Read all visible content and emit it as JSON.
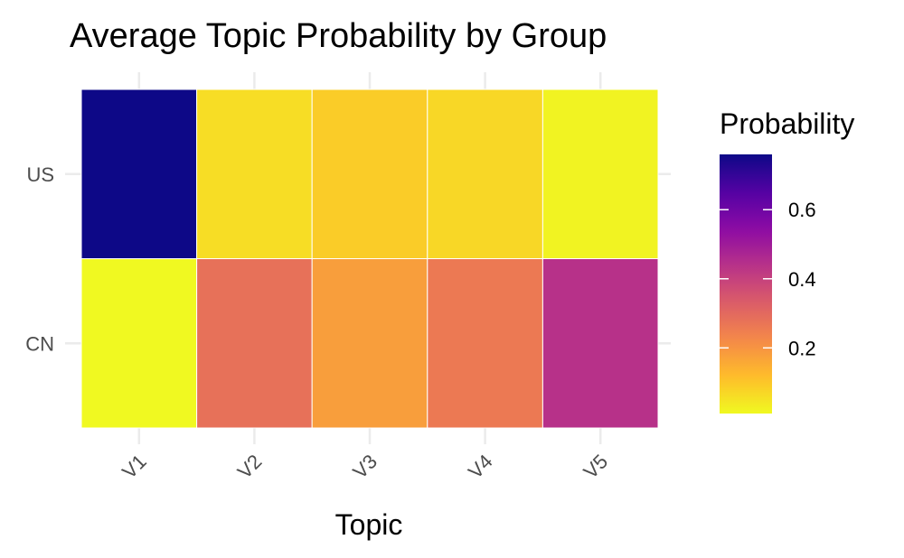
{
  "chart_data": {
    "type": "heatmap",
    "title": "Average Topic Probability by Group",
    "xlabel": "Topic",
    "ylabel": "",
    "x_categories": [
      "V1",
      "V2",
      "V3",
      "V4",
      "V5"
    ],
    "y_categories": [
      "CN",
      "US"
    ],
    "values": [
      {
        "group": "US",
        "values": [
          0.76,
          0.06,
          0.09,
          0.07,
          0.02
        ]
      },
      {
        "group": "CN",
        "values": [
          0.01,
          0.28,
          0.18,
          0.26,
          0.44
        ]
      }
    ],
    "legend": {
      "title": "Probability",
      "ticks": [
        "0.2",
        "0.4",
        "0.6"
      ],
      "tick_values": [
        0.2,
        0.4,
        0.6
      ],
      "range": [
        0.01,
        0.76
      ],
      "placement": "right",
      "colormap": "plasma"
    },
    "grid": true
  },
  "colors": {
    "plasma_stops": [
      "#0d0887",
      "#5302a3",
      "#8b0aa5",
      "#b83289",
      "#db5c68",
      "#f48849",
      "#febd2a",
      "#f0f921"
    ]
  }
}
